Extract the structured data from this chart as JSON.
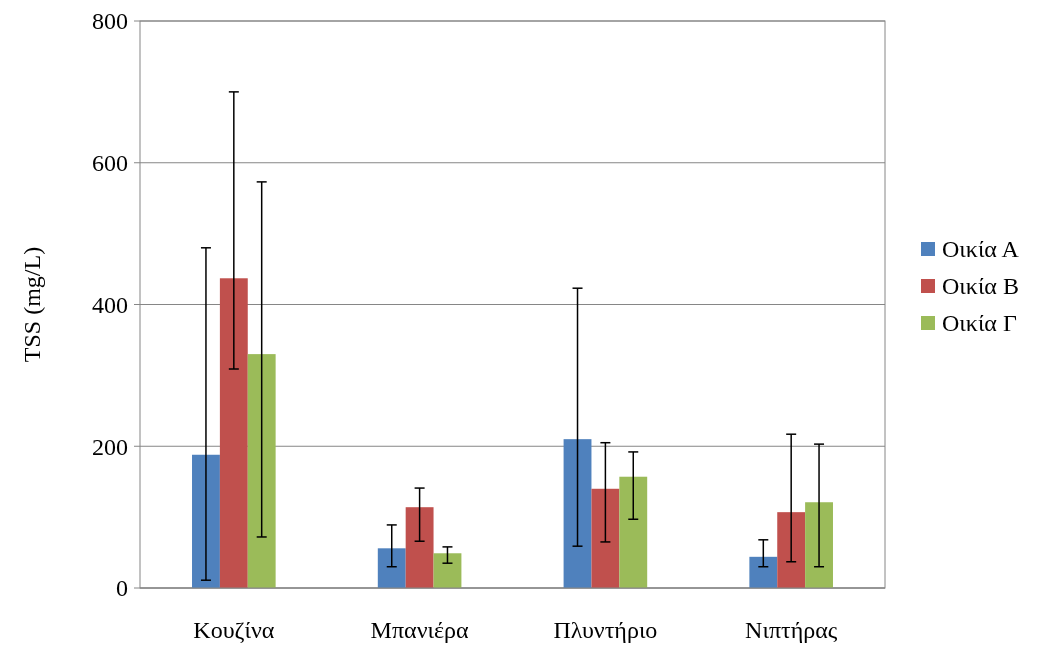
{
  "chart_data": {
    "type": "bar",
    "ylabel": "TSS (mg/L)",
    "categories": [
      "Κουζίνα",
      "Μπανιέρα",
      "Πλυντήριο",
      "Νιπτήρας"
    ],
    "series": [
      {
        "name": "Οικία Α",
        "color": "#4f81bd",
        "values": [
          188,
          56,
          210,
          44
        ],
        "errors": [
          [
            11,
            480
          ],
          [
            30,
            89
          ],
          [
            59,
            423
          ],
          [
            30,
            68
          ]
        ]
      },
      {
        "name": "Οικία Β",
        "color": "#c0504d",
        "values": [
          437,
          114,
          140,
          107
        ],
        "errors": [
          [
            309,
            700
          ],
          [
            66,
            141
          ],
          [
            65,
            205
          ],
          [
            37,
            217
          ]
        ]
      },
      {
        "name": "Οικία Γ",
        "color": "#9bbb59",
        "values": [
          330,
          49,
          157,
          121
        ],
        "errors": [
          [
            72,
            573
          ],
          [
            35,
            58
          ],
          [
            97,
            192
          ],
          [
            30,
            203
          ]
        ]
      }
    ],
    "ylim": [
      0,
      800
    ],
    "yticks": [
      0,
      200,
      400,
      600,
      800
    ],
    "grid": "y",
    "legend": "right"
  }
}
